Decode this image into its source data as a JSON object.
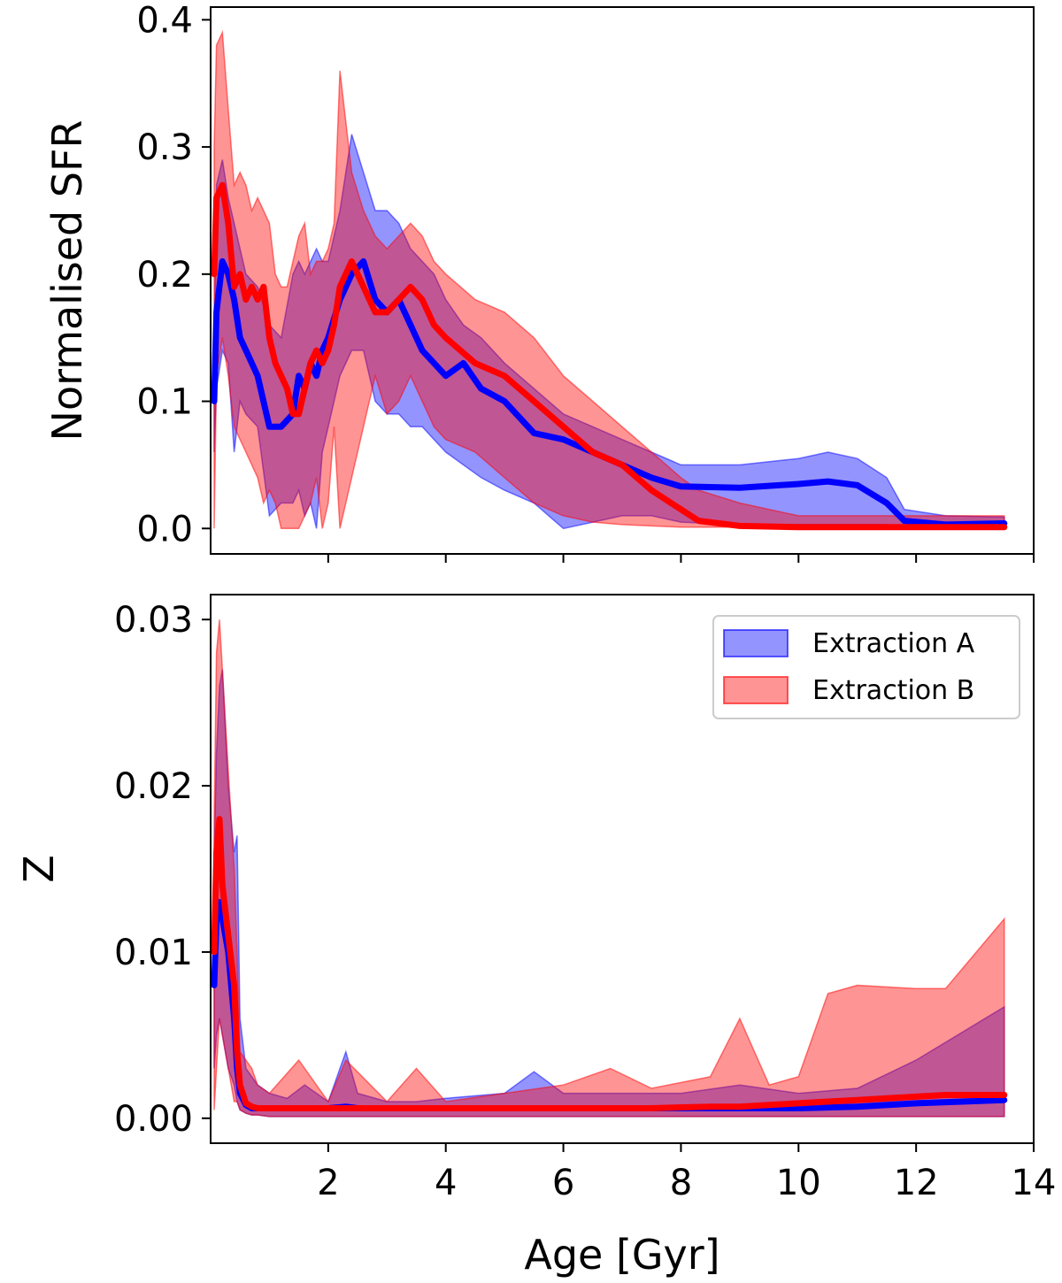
{
  "chart_data": [
    {
      "type": "area",
      "panel": "top",
      "title": "",
      "xlabel": "",
      "ylabel": "Normalised SFR",
      "xlim": [
        0.0,
        14.0
      ],
      "ylim": [
        -0.02,
        0.41
      ],
      "xticks": [
        2,
        4,
        6,
        8,
        10,
        12,
        14
      ],
      "xtick_labels": [
        "",
        "",
        "",
        "",
        "",
        "",
        ""
      ],
      "yticks": [
        0.0,
        0.1,
        0.2,
        0.3,
        0.4
      ],
      "ytick_labels": [
        "0.0",
        "0.1",
        "0.2",
        "0.3",
        "0.4"
      ],
      "series": [
        {
          "name": "Extraction A",
          "color": "#0000ff",
          "fill": "#0000ff",
          "x": [
            0.06,
            0.1,
            0.2,
            0.3,
            0.4,
            0.5,
            0.6,
            0.8,
            1.0,
            1.2,
            1.4,
            1.5,
            1.6,
            1.7,
            1.8,
            1.9,
            2.0,
            2.2,
            2.4,
            2.6,
            2.8,
            3.0,
            3.2,
            3.4,
            3.6,
            3.8,
            4.0,
            4.3,
            4.6,
            5.0,
            5.5,
            6.0,
            6.5,
            7.0,
            7.5,
            8.0,
            9.0,
            10.0,
            10.5,
            11.0,
            11.5,
            11.8,
            12.5,
            13.5
          ],
          "y": [
            0.1,
            0.17,
            0.21,
            0.2,
            0.18,
            0.15,
            0.14,
            0.12,
            0.08,
            0.08,
            0.09,
            0.12,
            0.11,
            0.13,
            0.12,
            0.14,
            0.15,
            0.18,
            0.2,
            0.21,
            0.18,
            0.17,
            0.18,
            0.16,
            0.14,
            0.13,
            0.12,
            0.13,
            0.11,
            0.1,
            0.075,
            0.07,
            0.06,
            0.05,
            0.04,
            0.033,
            0.032,
            0.035,
            0.037,
            0.034,
            0.02,
            0.006,
            0.003,
            0.004
          ],
          "upper": [
            0.15,
            0.27,
            0.29,
            0.26,
            0.24,
            0.22,
            0.2,
            0.19,
            0.16,
            0.15,
            0.2,
            0.21,
            0.2,
            0.21,
            0.22,
            0.21,
            0.21,
            0.25,
            0.31,
            0.28,
            0.25,
            0.25,
            0.24,
            0.22,
            0.21,
            0.2,
            0.18,
            0.16,
            0.15,
            0.13,
            0.11,
            0.09,
            0.08,
            0.07,
            0.06,
            0.05,
            0.05,
            0.055,
            0.06,
            0.055,
            0.04,
            0.015,
            0.01,
            0.009
          ],
          "lower": [
            0.06,
            0.11,
            0.14,
            0.13,
            0.06,
            0.1,
            0.09,
            0.08,
            0.01,
            0.02,
            0.02,
            0.03,
            0.01,
            0.02,
            0.0,
            0.06,
            0.08,
            0.12,
            0.14,
            0.14,
            0.1,
            0.09,
            0.09,
            0.08,
            0.08,
            0.07,
            0.06,
            0.05,
            0.04,
            0.03,
            0.02,
            0.0,
            0.005,
            0.01,
            0.01,
            0.005,
            0.003,
            0.003,
            0.003,
            0.003,
            0.003,
            0.002,
            0.001,
            0.001
          ]
        },
        {
          "name": "Extraction B",
          "color": "#ff0000",
          "fill": "#ff0000",
          "x": [
            0.06,
            0.1,
            0.2,
            0.3,
            0.4,
            0.5,
            0.6,
            0.7,
            0.8,
            0.9,
            1.0,
            1.1,
            1.2,
            1.3,
            1.4,
            1.5,
            1.6,
            1.7,
            1.8,
            1.9,
            2.0,
            2.1,
            2.2,
            2.4,
            2.6,
            2.8,
            3.0,
            3.2,
            3.4,
            3.6,
            3.8,
            4.0,
            4.5,
            5.0,
            5.5,
            6.0,
            6.5,
            7.0,
            7.5,
            8.0,
            8.3,
            9.0,
            10.0,
            11.0,
            12.0,
            13.5
          ],
          "y": [
            0.2,
            0.26,
            0.27,
            0.24,
            0.19,
            0.2,
            0.18,
            0.19,
            0.18,
            0.19,
            0.15,
            0.13,
            0.12,
            0.11,
            0.09,
            0.09,
            0.11,
            0.13,
            0.14,
            0.13,
            0.14,
            0.16,
            0.19,
            0.21,
            0.19,
            0.17,
            0.17,
            0.18,
            0.19,
            0.18,
            0.16,
            0.15,
            0.13,
            0.12,
            0.1,
            0.08,
            0.06,
            0.05,
            0.03,
            0.015,
            0.006,
            0.002,
            0.001,
            0.001,
            0.001,
            0.001
          ],
          "upper": [
            0.3,
            0.38,
            0.39,
            0.33,
            0.27,
            0.28,
            0.27,
            0.25,
            0.26,
            0.25,
            0.24,
            0.2,
            0.19,
            0.19,
            0.21,
            0.23,
            0.24,
            0.2,
            0.21,
            0.21,
            0.22,
            0.24,
            0.36,
            0.28,
            0.25,
            0.23,
            0.22,
            0.23,
            0.24,
            0.23,
            0.21,
            0.2,
            0.18,
            0.17,
            0.15,
            0.12,
            0.1,
            0.08,
            0.06,
            0.04,
            0.03,
            0.02,
            0.01,
            0.01,
            0.01,
            0.01
          ],
          "lower": [
            0.0,
            0.12,
            0.15,
            0.12,
            0.08,
            0.07,
            0.06,
            0.05,
            0.04,
            0.02,
            0.03,
            0.02,
            0.0,
            0.0,
            0.0,
            0.0,
            0.01,
            0.02,
            0.04,
            0.0,
            0.02,
            0.08,
            0.0,
            0.04,
            0.08,
            0.12,
            0.09,
            0.1,
            0.12,
            0.1,
            0.08,
            0.07,
            0.06,
            0.04,
            0.02,
            0.01,
            0.005,
            0.003,
            0.002,
            0.001,
            0.001,
            0.001,
            0.0,
            0.0,
            0.0,
            0.0
          ]
        }
      ]
    },
    {
      "type": "area",
      "panel": "bottom",
      "title": "",
      "xlabel": "Age [Gyr]",
      "ylabel": "Z",
      "xlim": [
        0.0,
        14.0
      ],
      "ylim": [
        -0.0015,
        0.0315
      ],
      "xticks": [
        2,
        4,
        6,
        8,
        10,
        12,
        14
      ],
      "xtick_labels": [
        "2",
        "4",
        "6",
        "8",
        "10",
        "12",
        "14"
      ],
      "yticks": [
        0.0,
        0.01,
        0.02,
        0.03
      ],
      "ytick_labels": [
        "0.00",
        "0.01",
        "0.02",
        "0.03"
      ],
      "legend": {
        "position": "top-right",
        "entries": [
          {
            "label": "Extraction A",
            "color": "#0000ff"
          },
          {
            "label": "Extraction B",
            "color": "#ff0000"
          }
        ]
      },
      "series": [
        {
          "name": "Extraction A",
          "color": "#0000ff",
          "fill": "#0000ff",
          "x": [
            0.06,
            0.1,
            0.15,
            0.2,
            0.3,
            0.4,
            0.45,
            0.5,
            0.6,
            0.7,
            0.8,
            1.0,
            1.3,
            1.6,
            2.0,
            2.3,
            2.5,
            3.0,
            3.5,
            4.0,
            5.0,
            5.5,
            6.0,
            7.0,
            8.0,
            9.0,
            10.0,
            11.0,
            12.0,
            13.5
          ],
          "y": [
            0.008,
            0.012,
            0.013,
            0.012,
            0.01,
            0.006,
            0.003,
            0.0015,
            0.0008,
            0.0006,
            0.0006,
            0.0006,
            0.0006,
            0.0006,
            0.0006,
            0.0007,
            0.0006,
            0.0006,
            0.0006,
            0.0006,
            0.0006,
            0.0006,
            0.0006,
            0.0006,
            0.0006,
            0.0006,
            0.0006,
            0.0007,
            0.0009,
            0.0011
          ],
          "upper": [
            0.016,
            0.022,
            0.026,
            0.027,
            0.02,
            0.016,
            0.017,
            0.006,
            0.003,
            0.0025,
            0.002,
            0.0015,
            0.0012,
            0.002,
            0.001,
            0.004,
            0.0015,
            0.001,
            0.001,
            0.0012,
            0.0015,
            0.0028,
            0.0015,
            0.0015,
            0.0015,
            0.002,
            0.0015,
            0.0018,
            0.0035,
            0.0067
          ],
          "lower": [
            0.003,
            0.005,
            0.006,
            0.005,
            0.003,
            0.002,
            0.001,
            0.0005,
            0.0003,
            0.0002,
            0.0002,
            0.0001,
            0.0001,
            0.0001,
            0.0001,
            0.0001,
            0.0001,
            0.0001,
            0.0001,
            0.0001,
            0.0001,
            0.0001,
            0.0001,
            0.0001,
            0.0001,
            0.0001,
            0.0001,
            0.0001,
            0.0001,
            0.0001
          ]
        },
        {
          "name": "Extraction B",
          "color": "#ff0000",
          "fill": "#ff0000",
          "x": [
            0.06,
            0.1,
            0.15,
            0.2,
            0.3,
            0.4,
            0.45,
            0.5,
            0.6,
            0.7,
            0.8,
            1.0,
            1.5,
            2.0,
            2.3,
            3.0,
            3.5,
            4.0,
            5.0,
            6.0,
            6.8,
            7.5,
            8.5,
            9.0,
            9.5,
            10.0,
            10.5,
            11.0,
            12.0,
            12.5,
            13.5
          ],
          "y": [
            0.01,
            0.016,
            0.018,
            0.014,
            0.011,
            0.008,
            0.004,
            0.002,
            0.0009,
            0.0007,
            0.0006,
            0.0006,
            0.0006,
            0.0006,
            0.0006,
            0.0006,
            0.0006,
            0.0006,
            0.0006,
            0.0006,
            0.0006,
            0.0006,
            0.0007,
            0.0007,
            0.0008,
            0.0009,
            0.001,
            0.0011,
            0.0013,
            0.0014,
            0.0014
          ],
          "upper": [
            0.018,
            0.028,
            0.03,
            0.027,
            0.021,
            0.015,
            0.01,
            0.004,
            0.0035,
            0.003,
            0.002,
            0.0015,
            0.0035,
            0.001,
            0.0035,
            0.001,
            0.003,
            0.001,
            0.0015,
            0.002,
            0.003,
            0.0018,
            0.0025,
            0.006,
            0.002,
            0.0025,
            0.0075,
            0.008,
            0.0078,
            0.0078,
            0.012
          ],
          "lower": [
            0.0005,
            0.003,
            0.006,
            0.005,
            0.003,
            0.001,
            0.001,
            0.0005,
            0.0003,
            0.0002,
            0.0002,
            0.0001,
            0.0001,
            0.0001,
            0.0001,
            0.0001,
            0.0001,
            0.0001,
            0.0001,
            0.0001,
            0.0001,
            0.0001,
            0.0001,
            0.0001,
            0.0001,
            0.0001,
            0.0001,
            0.0001,
            0.0001,
            0.0001,
            0.0001
          ]
        }
      ]
    }
  ]
}
